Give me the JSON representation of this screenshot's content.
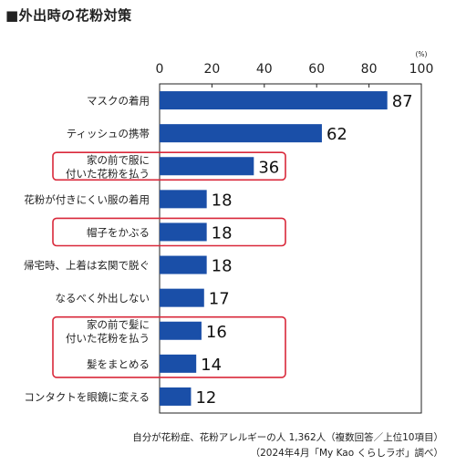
{
  "chart_data": {
    "type": "bar",
    "orientation": "horizontal",
    "title": "■外出時の花粉対策",
    "unit_label": "(%)",
    "xlim": [
      0,
      100
    ],
    "x_ticks": [
      "0",
      "20",
      "40",
      "60",
      "80",
      "100"
    ],
    "grid": false,
    "categories": [
      [
        "マスクの着用"
      ],
      [
        "ティッシュの携帯"
      ],
      [
        "家の前で服に",
        "付いた花粉を払う"
      ],
      [
        "花粉が付きにくい服の着用"
      ],
      [
        "帽子をかぶる"
      ],
      [
        "帰宅時、上着は玄関で脱ぐ"
      ],
      [
        "なるべく外出しない"
      ],
      [
        "家の前で髪に",
        "付いた花粉を払う"
      ],
      [
        "髪をまとめる"
      ],
      [
        "コンタクトを眼鏡に変える"
      ]
    ],
    "values": [
      87,
      62,
      36,
      18,
      18,
      18,
      17,
      16,
      14,
      12
    ],
    "value_labels": [
      "87",
      "62",
      "36",
      "18",
      "18",
      "18",
      "17",
      "16",
      "14",
      "12"
    ],
    "highlighted_groups": [
      [
        2
      ],
      [
        4
      ],
      [
        7,
        8
      ]
    ],
    "bar_color": "#1a4fa8",
    "highlight_color": "#d9283a"
  },
  "notes": [
    "自分が花粉症、花粉アレルギーの人 1,362人（複数回答／上位10項目）",
    "（2024年4月「My Kao くらしラボ」調べ）"
  ]
}
